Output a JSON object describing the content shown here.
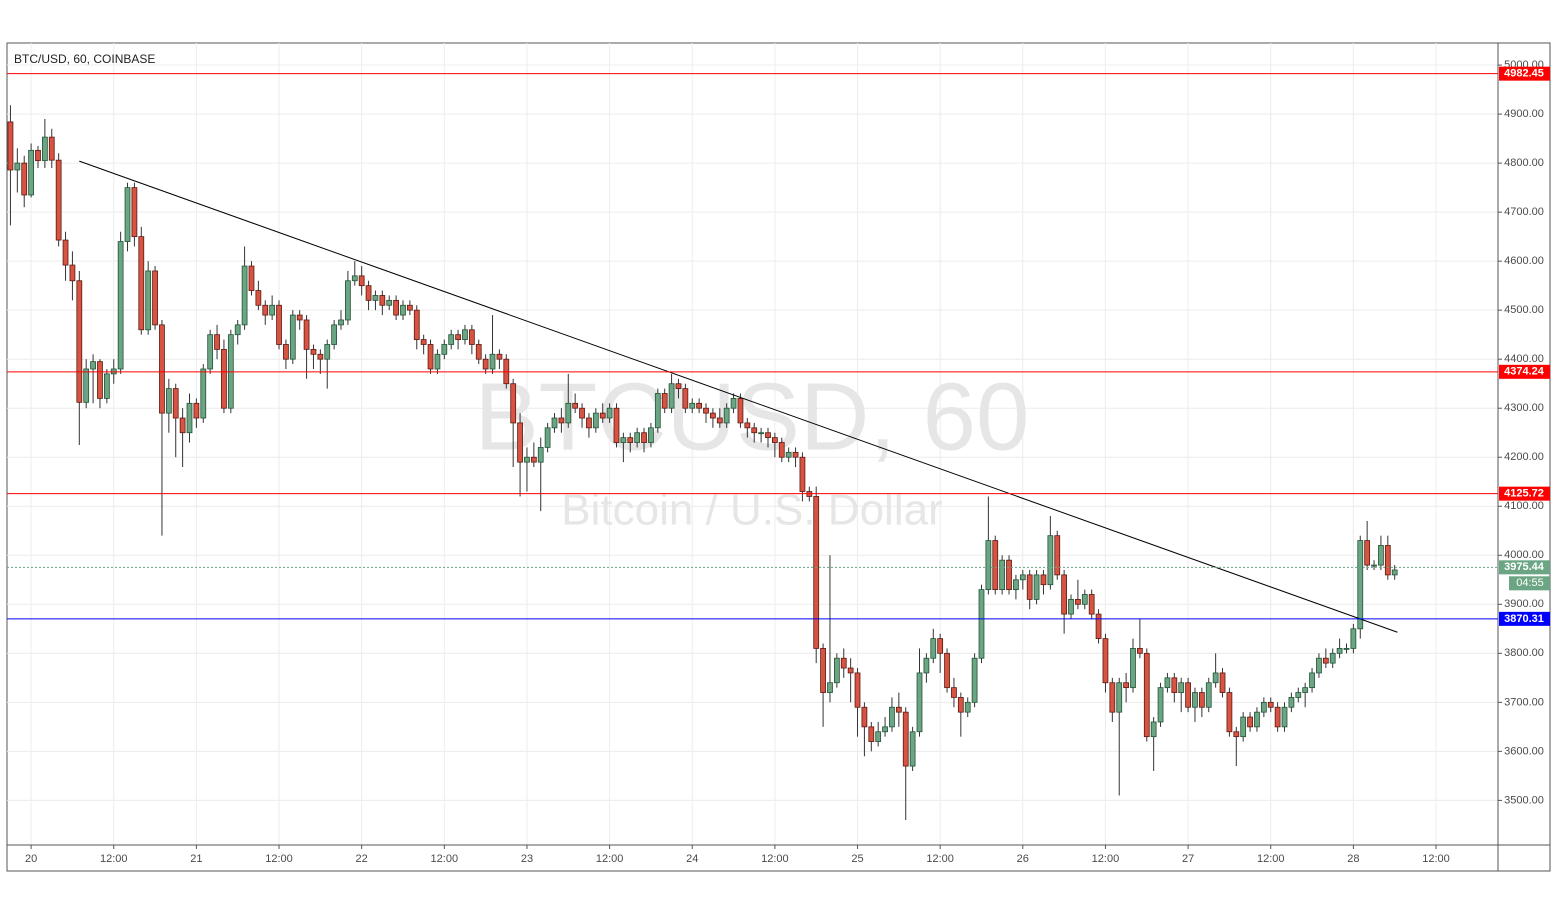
{
  "chart_data": {
    "type": "candlestick",
    "title": "BTC/USD, 60, COINBASE",
    "watermark": "BTCUSD, 60",
    "watermark_subtitle": "Bitcoin / U.S. Dollar",
    "countdown": "04:55",
    "up_color": "#6ba583",
    "down_color": "#d75442",
    "grid": true,
    "xlim": [
      -0.5,
      216
    ],
    "ylim": [
      3409,
      5045
    ],
    "xticks": [
      {
        "value": 3,
        "label": "20"
      },
      {
        "value": 15,
        "label": "12:00"
      },
      {
        "value": 27,
        "label": "21"
      },
      {
        "value": 39,
        "label": "12:00"
      },
      {
        "value": 51,
        "label": "22"
      },
      {
        "value": 63,
        "label": "12:00"
      },
      {
        "value": 75,
        "label": "23"
      },
      {
        "value": 87,
        "label": "12:00"
      },
      {
        "value": 99,
        "label": "24"
      },
      {
        "value": 111,
        "label": "12:00"
      },
      {
        "value": 123,
        "label": "25"
      },
      {
        "value": 135,
        "label": "12:00"
      },
      {
        "value": 147,
        "label": "26"
      },
      {
        "value": 159,
        "label": "12:00"
      },
      {
        "value": 171,
        "label": "27"
      },
      {
        "value": 183,
        "label": "12:00"
      },
      {
        "value": 195,
        "label": "28"
      },
      {
        "value": 207,
        "label": "12:00"
      }
    ],
    "yticks": [
      {
        "value": 3500,
        "label": "3500.00"
      },
      {
        "value": 3600,
        "label": "3600.00"
      },
      {
        "value": 3700,
        "label": "3700.00"
      },
      {
        "value": 3800,
        "label": "3800.00"
      },
      {
        "value": 3900,
        "label": "3900.00"
      },
      {
        "value": 4000,
        "label": "4000.00"
      },
      {
        "value": 4100,
        "label": "4100.00"
      },
      {
        "value": 4200,
        "label": "4200.00"
      },
      {
        "value": 4300,
        "label": "4300.00"
      },
      {
        "value": 4400,
        "label": "4400.00"
      },
      {
        "value": 4500,
        "label": "4500.00"
      },
      {
        "value": 4600,
        "label": "4600.00"
      },
      {
        "value": 4700,
        "label": "4700.00"
      },
      {
        "value": 4800,
        "label": "4800.00"
      },
      {
        "value": 4900,
        "label": "4900.00"
      },
      {
        "value": 5000,
        "label": "5000.00"
      }
    ],
    "levels": [
      {
        "value": 4982.45,
        "color": "#ff0000",
        "style": "solid"
      },
      {
        "value": 4374.24,
        "color": "#ff0000",
        "style": "solid"
      },
      {
        "value": 4125.72,
        "color": "#ff0000",
        "style": "solid"
      },
      {
        "value": 3975.44,
        "color": "#6ba583",
        "style": "dotted"
      },
      {
        "value": 3870.31,
        "color": "#0000ff",
        "style": "solid"
      }
    ],
    "trendline": {
      "x": [
        10,
        201.4
      ],
      "y": [
        4804,
        3843
      ],
      "color": "#000000"
    },
    "candles": [
      [
        4884,
        4918,
        4673,
        4786
      ],
      [
        4786,
        4830,
        4740,
        4800
      ],
      [
        4800,
        4815,
        4710,
        4735
      ],
      [
        4735,
        4840,
        4730,
        4826
      ],
      [
        4826,
        4835,
        4790,
        4805
      ],
      [
        4805,
        4890,
        4790,
        4853
      ],
      [
        4853,
        4870,
        4790,
        4806
      ],
      [
        4806,
        4820,
        4630,
        4643
      ],
      [
        4643,
        4660,
        4560,
        4592
      ],
      [
        4592,
        4620,
        4520,
        4560
      ],
      [
        4560,
        4580,
        4225,
        4312
      ],
      [
        4312,
        4400,
        4300,
        4380
      ],
      [
        4380,
        4410,
        4310,
        4395
      ],
      [
        4395,
        4400,
        4300,
        4320
      ],
      [
        4320,
        4380,
        4310,
        4370
      ],
      [
        4370,
        4400,
        4350,
        4380
      ],
      [
        4380,
        4660,
        4370,
        4640
      ],
      [
        4640,
        4760,
        4620,
        4750
      ],
      [
        4750,
        4760,
        4630,
        4650
      ],
      [
        4650,
        4670,
        4450,
        4460
      ],
      [
        4460,
        4600,
        4450,
        4580
      ],
      [
        4580,
        4590,
        4460,
        4470
      ],
      [
        4470,
        4480,
        4040,
        4290
      ],
      [
        4290,
        4360,
        4250,
        4340
      ],
      [
        4340,
        4350,
        4200,
        4280
      ],
      [
        4280,
        4300,
        4180,
        4250
      ],
      [
        4250,
        4330,
        4230,
        4310
      ],
      [
        4310,
        4320,
        4260,
        4280
      ],
      [
        4280,
        4390,
        4270,
        4380
      ],
      [
        4380,
        4460,
        4370,
        4450
      ],
      [
        4450,
        4470,
        4400,
        4420
      ],
      [
        4420,
        4440,
        4290,
        4300
      ],
      [
        4300,
        4460,
        4290,
        4450
      ],
      [
        4450,
        4480,
        4430,
        4470
      ],
      [
        4470,
        4630,
        4460,
        4590
      ],
      [
        4590,
        4600,
        4530,
        4540
      ],
      [
        4540,
        4560,
        4500,
        4510
      ],
      [
        4510,
        4520,
        4470,
        4490
      ],
      [
        4490,
        4530,
        4480,
        4510
      ],
      [
        4510,
        4520,
        4420,
        4430
      ],
      [
        4430,
        4440,
        4380,
        4400
      ],
      [
        4400,
        4500,
        4390,
        4490
      ],
      [
        4490,
        4500,
        4460,
        4480
      ],
      [
        4480,
        4490,
        4360,
        4420
      ],
      [
        4420,
        4430,
        4380,
        4410
      ],
      [
        4410,
        4420,
        4370,
        4400
      ],
      [
        4400,
        4440,
        4340,
        4430
      ],
      [
        4430,
        4480,
        4420,
        4470
      ],
      [
        4470,
        4500,
        4460,
        4480
      ],
      [
        4480,
        4580,
        4470,
        4560
      ],
      [
        4560,
        4600,
        4550,
        4570
      ],
      [
        4570,
        4590,
        4530,
        4550
      ],
      [
        4550,
        4560,
        4500,
        4520
      ],
      [
        4520,
        4540,
        4500,
        4530
      ],
      [
        4530,
        4540,
        4490,
        4510
      ],
      [
        4510,
        4530,
        4500,
        4520
      ],
      [
        4520,
        4530,
        4480,
        4490
      ],
      [
        4490,
        4520,
        4480,
        4510
      ],
      [
        4510,
        4520,
        4490,
        4500
      ],
      [
        4500,
        4510,
        4420,
        4440
      ],
      [
        4440,
        4450,
        4410,
        4430
      ],
      [
        4430,
        4440,
        4370,
        4380
      ],
      [
        4380,
        4420,
        4370,
        4410
      ],
      [
        4410,
        4440,
        4400,
        4430
      ],
      [
        4430,
        4460,
        4420,
        4450
      ],
      [
        4450,
        4460,
        4420,
        4440
      ],
      [
        4440,
        4470,
        4430,
        4460
      ],
      [
        4460,
        4470,
        4410,
        4430
      ],
      [
        4430,
        4440,
        4390,
        4400
      ],
      [
        4400,
        4410,
        4370,
        4380
      ],
      [
        4380,
        4490,
        4370,
        4410
      ],
      [
        4410,
        4420,
        4380,
        4400
      ],
      [
        4400,
        4410,
        4340,
        4350
      ],
      [
        4350,
        4360,
        4180,
        4270
      ],
      [
        4270,
        4290,
        4120,
        4190
      ],
      [
        4190,
        4220,
        4130,
        4200
      ],
      [
        4200,
        4230,
        4180,
        4190
      ],
      [
        4190,
        4240,
        4090,
        4220
      ],
      [
        4220,
        4270,
        4210,
        4260
      ],
      [
        4260,
        4290,
        4250,
        4280
      ],
      [
        4280,
        4300,
        4250,
        4270
      ],
      [
        4270,
        4370,
        4260,
        4310
      ],
      [
        4310,
        4330,
        4290,
        4300
      ],
      [
        4300,
        4310,
        4260,
        4280
      ],
      [
        4280,
        4290,
        4240,
        4260
      ],
      [
        4260,
        4300,
        4250,
        4290
      ],
      [
        4290,
        4310,
        4270,
        4280
      ],
      [
        4280,
        4310,
        4270,
        4300
      ],
      [
        4300,
        4310,
        4220,
        4230
      ],
      [
        4230,
        4250,
        4190,
        4240
      ],
      [
        4240,
        4250,
        4210,
        4230
      ],
      [
        4230,
        4260,
        4220,
        4250
      ],
      [
        4250,
        4260,
        4210,
        4230
      ],
      [
        4230,
        4270,
        4220,
        4260
      ],
      [
        4260,
        4340,
        4250,
        4330
      ],
      [
        4330,
        4340,
        4290,
        4300
      ],
      [
        4300,
        4370,
        4290,
        4350
      ],
      [
        4350,
        4360,
        4320,
        4340
      ],
      [
        4340,
        4350,
        4290,
        4300
      ],
      [
        4300,
        4320,
        4290,
        4310
      ],
      [
        4310,
        4320,
        4290,
        4300
      ],
      [
        4300,
        4310,
        4270,
        4290
      ],
      [
        4290,
        4300,
        4260,
        4280
      ],
      [
        4280,
        4300,
        4260,
        4270
      ],
      [
        4270,
        4310,
        4260,
        4300
      ],
      [
        4300,
        4330,
        4290,
        4320
      ],
      [
        4320,
        4330,
        4260,
        4270
      ],
      [
        4270,
        4280,
        4240,
        4260
      ],
      [
        4260,
        4270,
        4230,
        4250
      ],
      [
        4250,
        4260,
        4230,
        4250
      ],
      [
        4250,
        4260,
        4220,
        4240
      ],
      [
        4240,
        4250,
        4200,
        4230
      ],
      [
        4230,
        4240,
        4190,
        4200
      ],
      [
        4200,
        4220,
        4190,
        4210
      ],
      [
        4210,
        4220,
        4180,
        4200
      ],
      [
        4200,
        4210,
        4110,
        4130
      ],
      [
        4130,
        4140,
        4110,
        4120
      ],
      [
        4120,
        4140,
        3780,
        3810
      ],
      [
        3810,
        3820,
        3650,
        3720
      ],
      [
        3720,
        4000,
        3700,
        3740
      ],
      [
        3740,
        3800,
        3730,
        3790
      ],
      [
        3790,
        3810,
        3750,
        3770
      ],
      [
        3770,
        3790,
        3700,
        3760
      ],
      [
        3760,
        3770,
        3630,
        3690
      ],
      [
        3690,
        3700,
        3590,
        3650
      ],
      [
        3650,
        3660,
        3600,
        3620
      ],
      [
        3620,
        3660,
        3610,
        3640
      ],
      [
        3640,
        3670,
        3630,
        3650
      ],
      [
        3650,
        3710,
        3640,
        3690
      ],
      [
        3690,
        3720,
        3650,
        3680
      ],
      [
        3680,
        3690,
        3460,
        3570
      ],
      [
        3570,
        3650,
        3560,
        3640
      ],
      [
        3640,
        3810,
        3630,
        3760
      ],
      [
        3760,
        3800,
        3740,
        3790
      ],
      [
        3790,
        3850,
        3780,
        3830
      ],
      [
        3830,
        3840,
        3760,
        3800
      ],
      [
        3800,
        3810,
        3720,
        3730
      ],
      [
        3730,
        3750,
        3690,
        3710
      ],
      [
        3710,
        3720,
        3630,
        3680
      ],
      [
        3680,
        3710,
        3670,
        3700
      ],
      [
        3700,
        3800,
        3690,
        3790
      ],
      [
        3790,
        3940,
        3780,
        3930
      ],
      [
        3930,
        4120,
        3920,
        4030
      ],
      [
        4030,
        4040,
        3920,
        3930
      ],
      [
        3930,
        4000,
        3920,
        3990
      ],
      [
        3990,
        4000,
        3920,
        3930
      ],
      [
        3930,
        3960,
        3910,
        3950
      ],
      [
        3950,
        3970,
        3930,
        3960
      ],
      [
        3960,
        3970,
        3890,
        3910
      ],
      [
        3910,
        3970,
        3900,
        3960
      ],
      [
        3960,
        3970,
        3920,
        3940
      ],
      [
        3940,
        4080,
        3930,
        4040
      ],
      [
        4040,
        4050,
        3950,
        3960
      ],
      [
        3960,
        3970,
        3840,
        3880
      ],
      [
        3880,
        3920,
        3870,
        3910
      ],
      [
        3910,
        3950,
        3890,
        3900
      ],
      [
        3900,
        3930,
        3890,
        3920
      ],
      [
        3920,
        3930,
        3870,
        3880
      ],
      [
        3880,
        3890,
        3820,
        3830
      ],
      [
        3830,
        3840,
        3720,
        3740
      ],
      [
        3740,
        3750,
        3660,
        3680
      ],
      [
        3680,
        3750,
        3510,
        3740
      ],
      [
        3740,
        3760,
        3700,
        3730
      ],
      [
        3730,
        3830,
        3720,
        3810
      ],
      [
        3810,
        3870,
        3790,
        3800
      ],
      [
        3800,
        3810,
        3620,
        3630
      ],
      [
        3630,
        3670,
        3560,
        3660
      ],
      [
        3660,
        3740,
        3650,
        3730
      ],
      [
        3730,
        3760,
        3720,
        3750
      ],
      [
        3750,
        3760,
        3700,
        3720
      ],
      [
        3720,
        3750,
        3680,
        3740
      ],
      [
        3740,
        3750,
        3680,
        3690
      ],
      [
        3690,
        3730,
        3660,
        3720
      ],
      [
        3720,
        3730,
        3670,
        3690
      ],
      [
        3690,
        3750,
        3680,
        3740
      ],
      [
        3740,
        3800,
        3730,
        3760
      ],
      [
        3760,
        3770,
        3710,
        3720
      ],
      [
        3720,
        3730,
        3630,
        3640
      ],
      [
        3640,
        3650,
        3570,
        3630
      ],
      [
        3630,
        3680,
        3620,
        3670
      ],
      [
        3670,
        3680,
        3640,
        3650
      ],
      [
        3650,
        3690,
        3640,
        3680
      ],
      [
        3680,
        3710,
        3670,
        3700
      ],
      [
        3700,
        3710,
        3680,
        3690
      ],
      [
        3690,
        3700,
        3640,
        3650
      ],
      [
        3650,
        3700,
        3640,
        3690
      ],
      [
        3690,
        3720,
        3680,
        3710
      ],
      [
        3710,
        3730,
        3700,
        3720
      ],
      [
        3720,
        3740,
        3690,
        3730
      ],
      [
        3730,
        3770,
        3720,
        3760
      ],
      [
        3760,
        3800,
        3750,
        3790
      ],
      [
        3790,
        3810,
        3770,
        3780
      ],
      [
        3780,
        3810,
        3770,
        3800
      ],
      [
        3800,
        3830,
        3790,
        3810
      ],
      [
        3810,
        3820,
        3800,
        3810
      ],
      [
        3810,
        3860,
        3800,
        3850
      ],
      [
        3850,
        4040,
        3830,
        4030
      ],
      [
        4030,
        4070,
        3970,
        3980
      ],
      [
        3980,
        3990,
        3970,
        3980
      ],
      [
        3980,
        4040,
        3970,
        4020
      ],
      [
        4020,
        4040,
        3950,
        3960
      ],
      [
        3960,
        3980,
        3950,
        3970
      ]
    ]
  }
}
